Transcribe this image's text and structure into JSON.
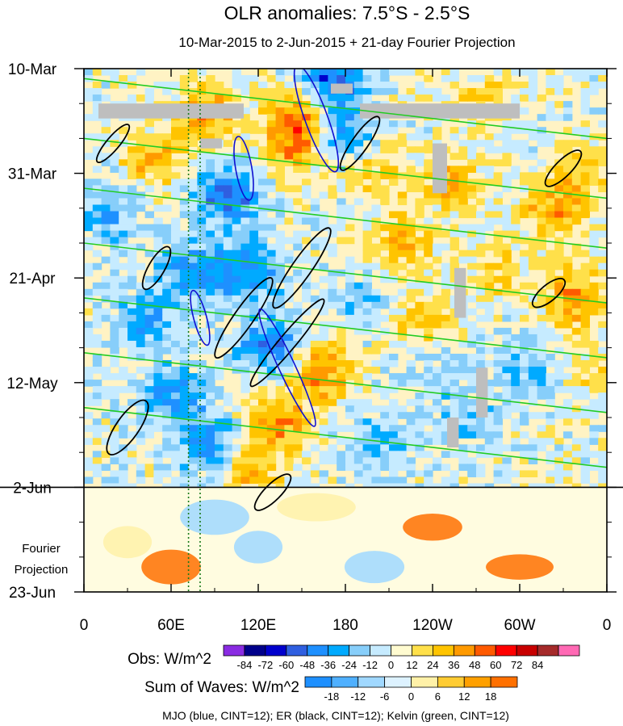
{
  "chart_data": {
    "type": "heatmap",
    "title": "OLR anomalies: 7.5°S - 2.5°S",
    "subtitle": "10-Mar-2015 to 2-Jun-2015 + 21-day Fourier Projection",
    "x_ticks": [
      {
        "lon": 0,
        "label": "0"
      },
      {
        "lon": 60,
        "label": "60E"
      },
      {
        "lon": 120,
        "label": "120E"
      },
      {
        "lon": 180,
        "label": "180"
      },
      {
        "lon": 240,
        "label": "120W"
      },
      {
        "lon": 300,
        "label": "60W"
      },
      {
        "lon": 360,
        "label": "0"
      }
    ],
    "y_ticks": [
      {
        "day": 0,
        "label": "10-Mar"
      },
      {
        "day": 21,
        "label": "31-Mar"
      },
      {
        "day": 42,
        "label": "21-Apr"
      },
      {
        "day": 63,
        "label": "12-May"
      },
      {
        "day": 84,
        "label": "2-Jun"
      },
      {
        "day": 105,
        "label": "23-Jun"
      }
    ],
    "xlim": [
      0,
      360
    ],
    "ylim_days": [
      0,
      105
    ],
    "observation_end_day": 84,
    "projection_label": "Fourier\nProjection",
    "obs_colorbar": {
      "label": "Obs: W/m^2",
      "levels": [
        -84,
        -72,
        -60,
        -48,
        -36,
        -24,
        -12,
        0,
        12,
        24,
        36,
        48,
        60,
        72,
        84
      ],
      "colors": [
        "#8a2be2",
        "#00008b",
        "#0000cd",
        "#2f5fe0",
        "#1e90ff",
        "#00aaff",
        "#87cefa",
        "#c6ebff",
        "#fffbd0",
        "#ffe04a",
        "#ffc400",
        "#ff9a00",
        "#ff5a00",
        "#ff0000",
        "#c80000",
        "#a52a2a",
        "#ff69b4"
      ]
    },
    "waves_colorbar": {
      "label": "Sum of Waves: W/m^2",
      "levels": [
        -18,
        -12,
        -6,
        0,
        6,
        12,
        18
      ],
      "colors": [
        "#1e90ff",
        "#4fb0ff",
        "#a0d8ff",
        "#ddf2ff",
        "#fff1a8",
        "#ffcc33",
        "#ffa000",
        "#ff7000"
      ]
    },
    "footnote": "MJO (blue, CINT=12); ER (black, CINT=12); Kelvin (green, CINT=12)",
    "contour_colors": {
      "mjo": "#1010d0",
      "er": "#000000",
      "kelvin": "#22cc22",
      "reference_line": "#1a7a1a"
    },
    "reference_lines_lon": [
      72,
      80
    ],
    "missing_color": "#bebebe"
  }
}
